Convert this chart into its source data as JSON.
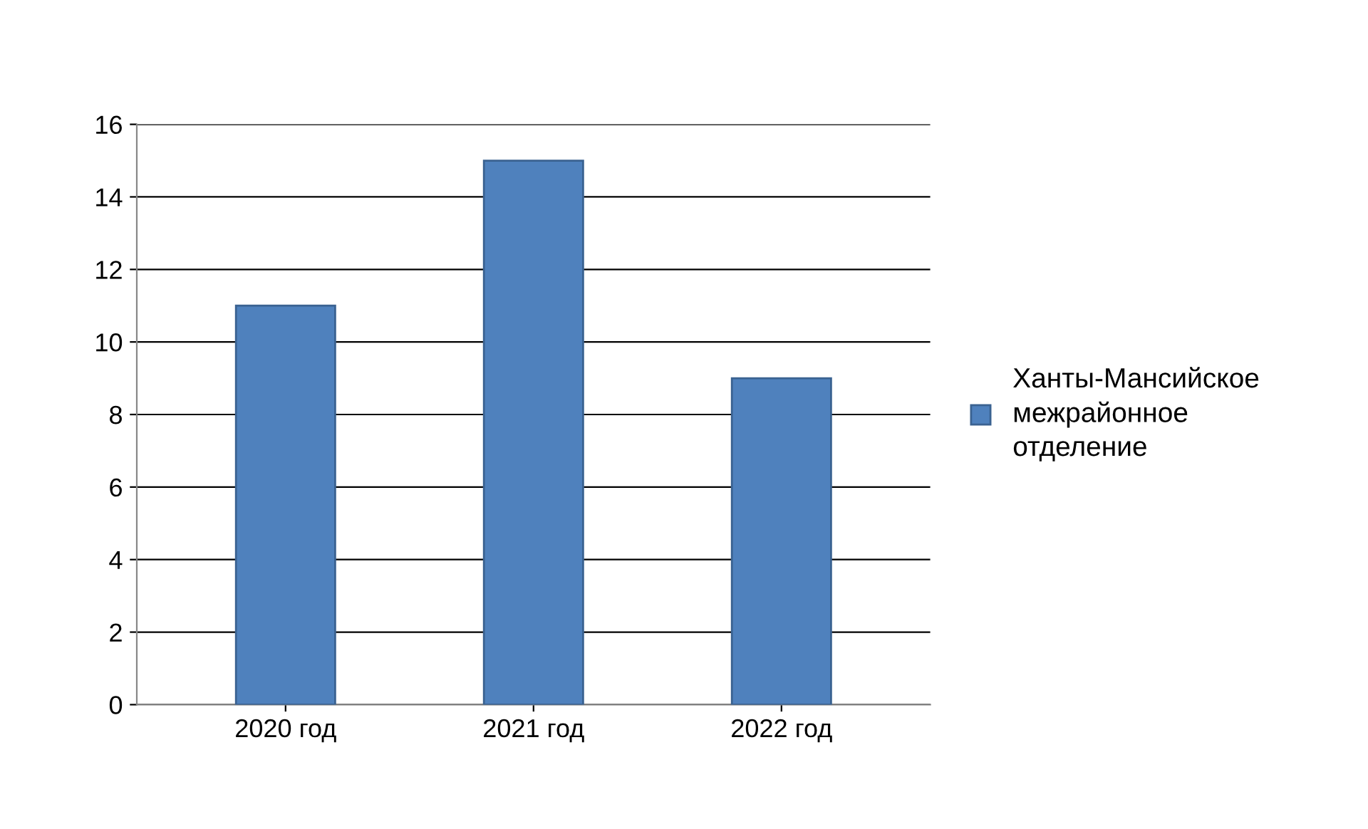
{
  "chart_data": {
    "type": "bar",
    "categories": [
      "2020 год",
      "2021 год",
      "2022 год"
    ],
    "series": [
      {
        "name": "Ханты-Мансийское межрайонное отделение",
        "color": "#4f81bd",
        "values": [
          11,
          15,
          9
        ]
      }
    ],
    "ylim": [
      0,
      16
    ],
    "yticks": [
      0,
      2,
      4,
      6,
      8,
      10,
      12,
      14,
      16
    ],
    "grid": "y",
    "legend": "right"
  }
}
